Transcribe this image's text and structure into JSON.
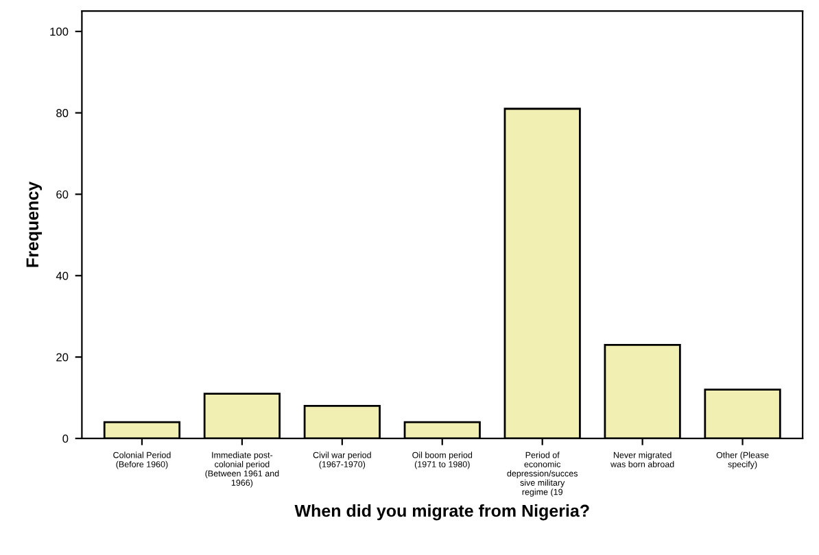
{
  "chart_data": {
    "type": "bar",
    "xlabel": "When did you migrate from Nigeria?",
    "ylabel": "Frequency",
    "categories": [
      "Colonial Period\n(Before 1960)",
      "Immediate post-\ncolonial period\n(Between 1961 and\n1966)",
      "Civil war period\n(1967-1970)",
      "Oil boom period\n(1971 to 1980)",
      "Period of\neconomic\ndepression/succes\nsive military\nregime (19",
      "Never migrated\nwas born abroad",
      "Other (Please\nspecify)"
    ],
    "values": [
      4,
      11,
      8,
      4,
      81,
      23,
      12
    ],
    "color": "#f2efb3",
    "ylim": [
      0,
      105
    ],
    "yticks": [
      0,
      20,
      40,
      60,
      80,
      100
    ],
    "grid": false
  }
}
